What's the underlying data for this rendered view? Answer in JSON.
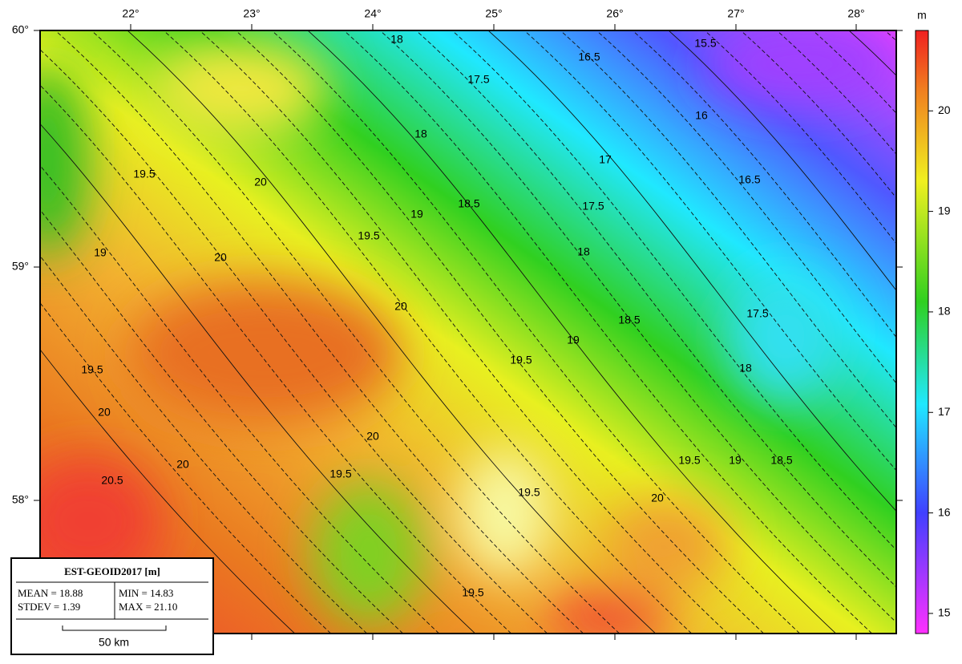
{
  "map": {
    "lon_labels": [
      "22°",
      "23°",
      "24°",
      "25°",
      "26°",
      "27°",
      "28°"
    ],
    "lat_labels": [
      "60°",
      "59°",
      "58°"
    ],
    "contour_labels": [
      "20",
      "19.5",
      "19",
      "19.5",
      "20",
      "20.5",
      "20",
      "20",
      "19.5",
      "19",
      "18.5",
      "18",
      "17.5",
      "18",
      "16.5",
      "15.5",
      "16",
      "17",
      "17.5",
      "16.5",
      "18",
      "20",
      "19",
      "18.5",
      "19.5",
      "17.5",
      "18",
      "19.5",
      "19",
      "18.5",
      "20",
      "19.5",
      "19.5",
      "20",
      "19.5"
    ]
  },
  "colorbar": {
    "unit": "m",
    "lim": [
      14.8,
      20.8
    ],
    "ticks": [
      15,
      16,
      17,
      18,
      19,
      20
    ]
  },
  "legend": {
    "title": "EST-GEOID2017 [m]",
    "mean": "MEAN = 18.88",
    "stdev": "STDEV = 1.39",
    "min": "MIN = 14.83",
    "max": "MAX = 21.10",
    "scale": "50 km"
  }
}
